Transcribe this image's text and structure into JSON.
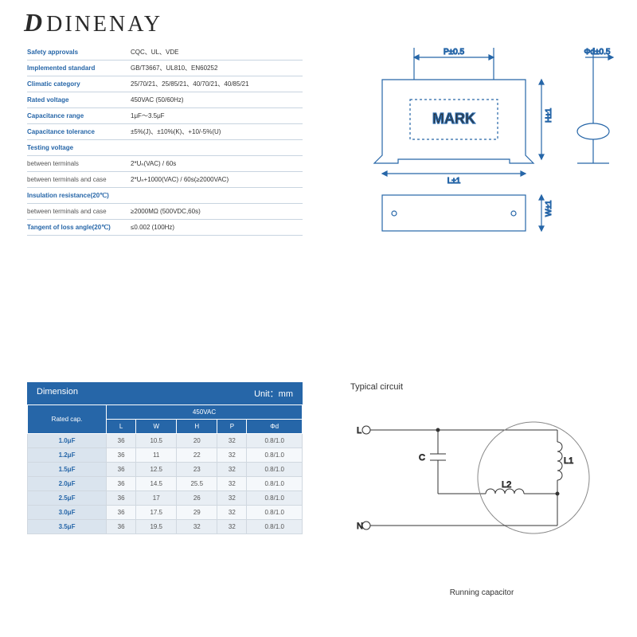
{
  "logo": "DINENAY",
  "specs": [
    {
      "label": "Safety approvals",
      "value": "CQC、UL、VDE"
    },
    {
      "label": "Implemented standard",
      "value": "GB/T3667、UL810、EN60252"
    },
    {
      "label": "Climatic category",
      "value": "25/70/21、25/85/21、40/70/21、40/85/21"
    },
    {
      "label": "Rated voltage",
      "value": "450VAC (50/60Hz)"
    },
    {
      "label": "Capacitance range",
      "value": "1μF～3.5μF"
    },
    {
      "label": "Capacitance tolerance",
      "value": "±5%(J)、±10%(K)、+10/-5%(U)"
    },
    {
      "label": "Testing voltage",
      "value": ""
    },
    {
      "label": "between terminals",
      "value": "2*Uₙ(VAC) / 60s"
    },
    {
      "label": "between terminals and case",
      "value": "2*Uₙ+1000(VAC) / 60s(≥2000VAC)"
    },
    {
      "label": "Insulation resistance(20℃)",
      "value": ""
    },
    {
      "label": "between terminals and case",
      "value": "≥2000MΩ        (500VDC,60s)"
    },
    {
      "label": "Tangent of loss angle(20℃)",
      "value": "≤0.002    (100Hz)"
    }
  ],
  "spec_bold_rows": [
    0,
    1,
    2,
    3,
    4,
    5,
    6,
    9,
    11
  ],
  "diagram": {
    "mark_text": "MARK",
    "labels": {
      "P": "P±0.5",
      "phid": "Φd±0.5",
      "H": "H±1",
      "L": "L±1",
      "W": "W±1"
    },
    "stroke": "#2666a8"
  },
  "dimension": {
    "title": "Dimension",
    "unit": "Unit：mm",
    "header_voltage": "450VAC",
    "col0": "Rated cap.",
    "cols": [
      "L",
      "W",
      "H",
      "P",
      "Φd"
    ],
    "rows": [
      {
        "cap": "1.0μF",
        "v": [
          "36",
          "10.5",
          "20",
          "32",
          "0.8/1.0"
        ]
      },
      {
        "cap": "1.2μF",
        "v": [
          "36",
          "11",
          "22",
          "32",
          "0.8/1.0"
        ]
      },
      {
        "cap": "1.5μF",
        "v": [
          "36",
          "12.5",
          "23",
          "32",
          "0.8/1.0"
        ]
      },
      {
        "cap": "2.0μF",
        "v": [
          "36",
          "14.5",
          "25.5",
          "32",
          "0.8/1.0"
        ]
      },
      {
        "cap": "2.5μF",
        "v": [
          "36",
          "17",
          "26",
          "32",
          "0.8/1.0"
        ]
      },
      {
        "cap": "3.0μF",
        "v": [
          "36",
          "17.5",
          "29",
          "32",
          "0.8/1.0"
        ]
      },
      {
        "cap": "3.5μF",
        "v": [
          "36",
          "19.5",
          "32",
          "32",
          "0.8/1.0"
        ]
      }
    ]
  },
  "circuit": {
    "title": "Typical circuit",
    "caption": "Running capacitor",
    "labels": {
      "L": "L",
      "N": "N",
      "C": "C",
      "L1": "L1",
      "L2": "L2"
    },
    "stroke": "#333"
  }
}
